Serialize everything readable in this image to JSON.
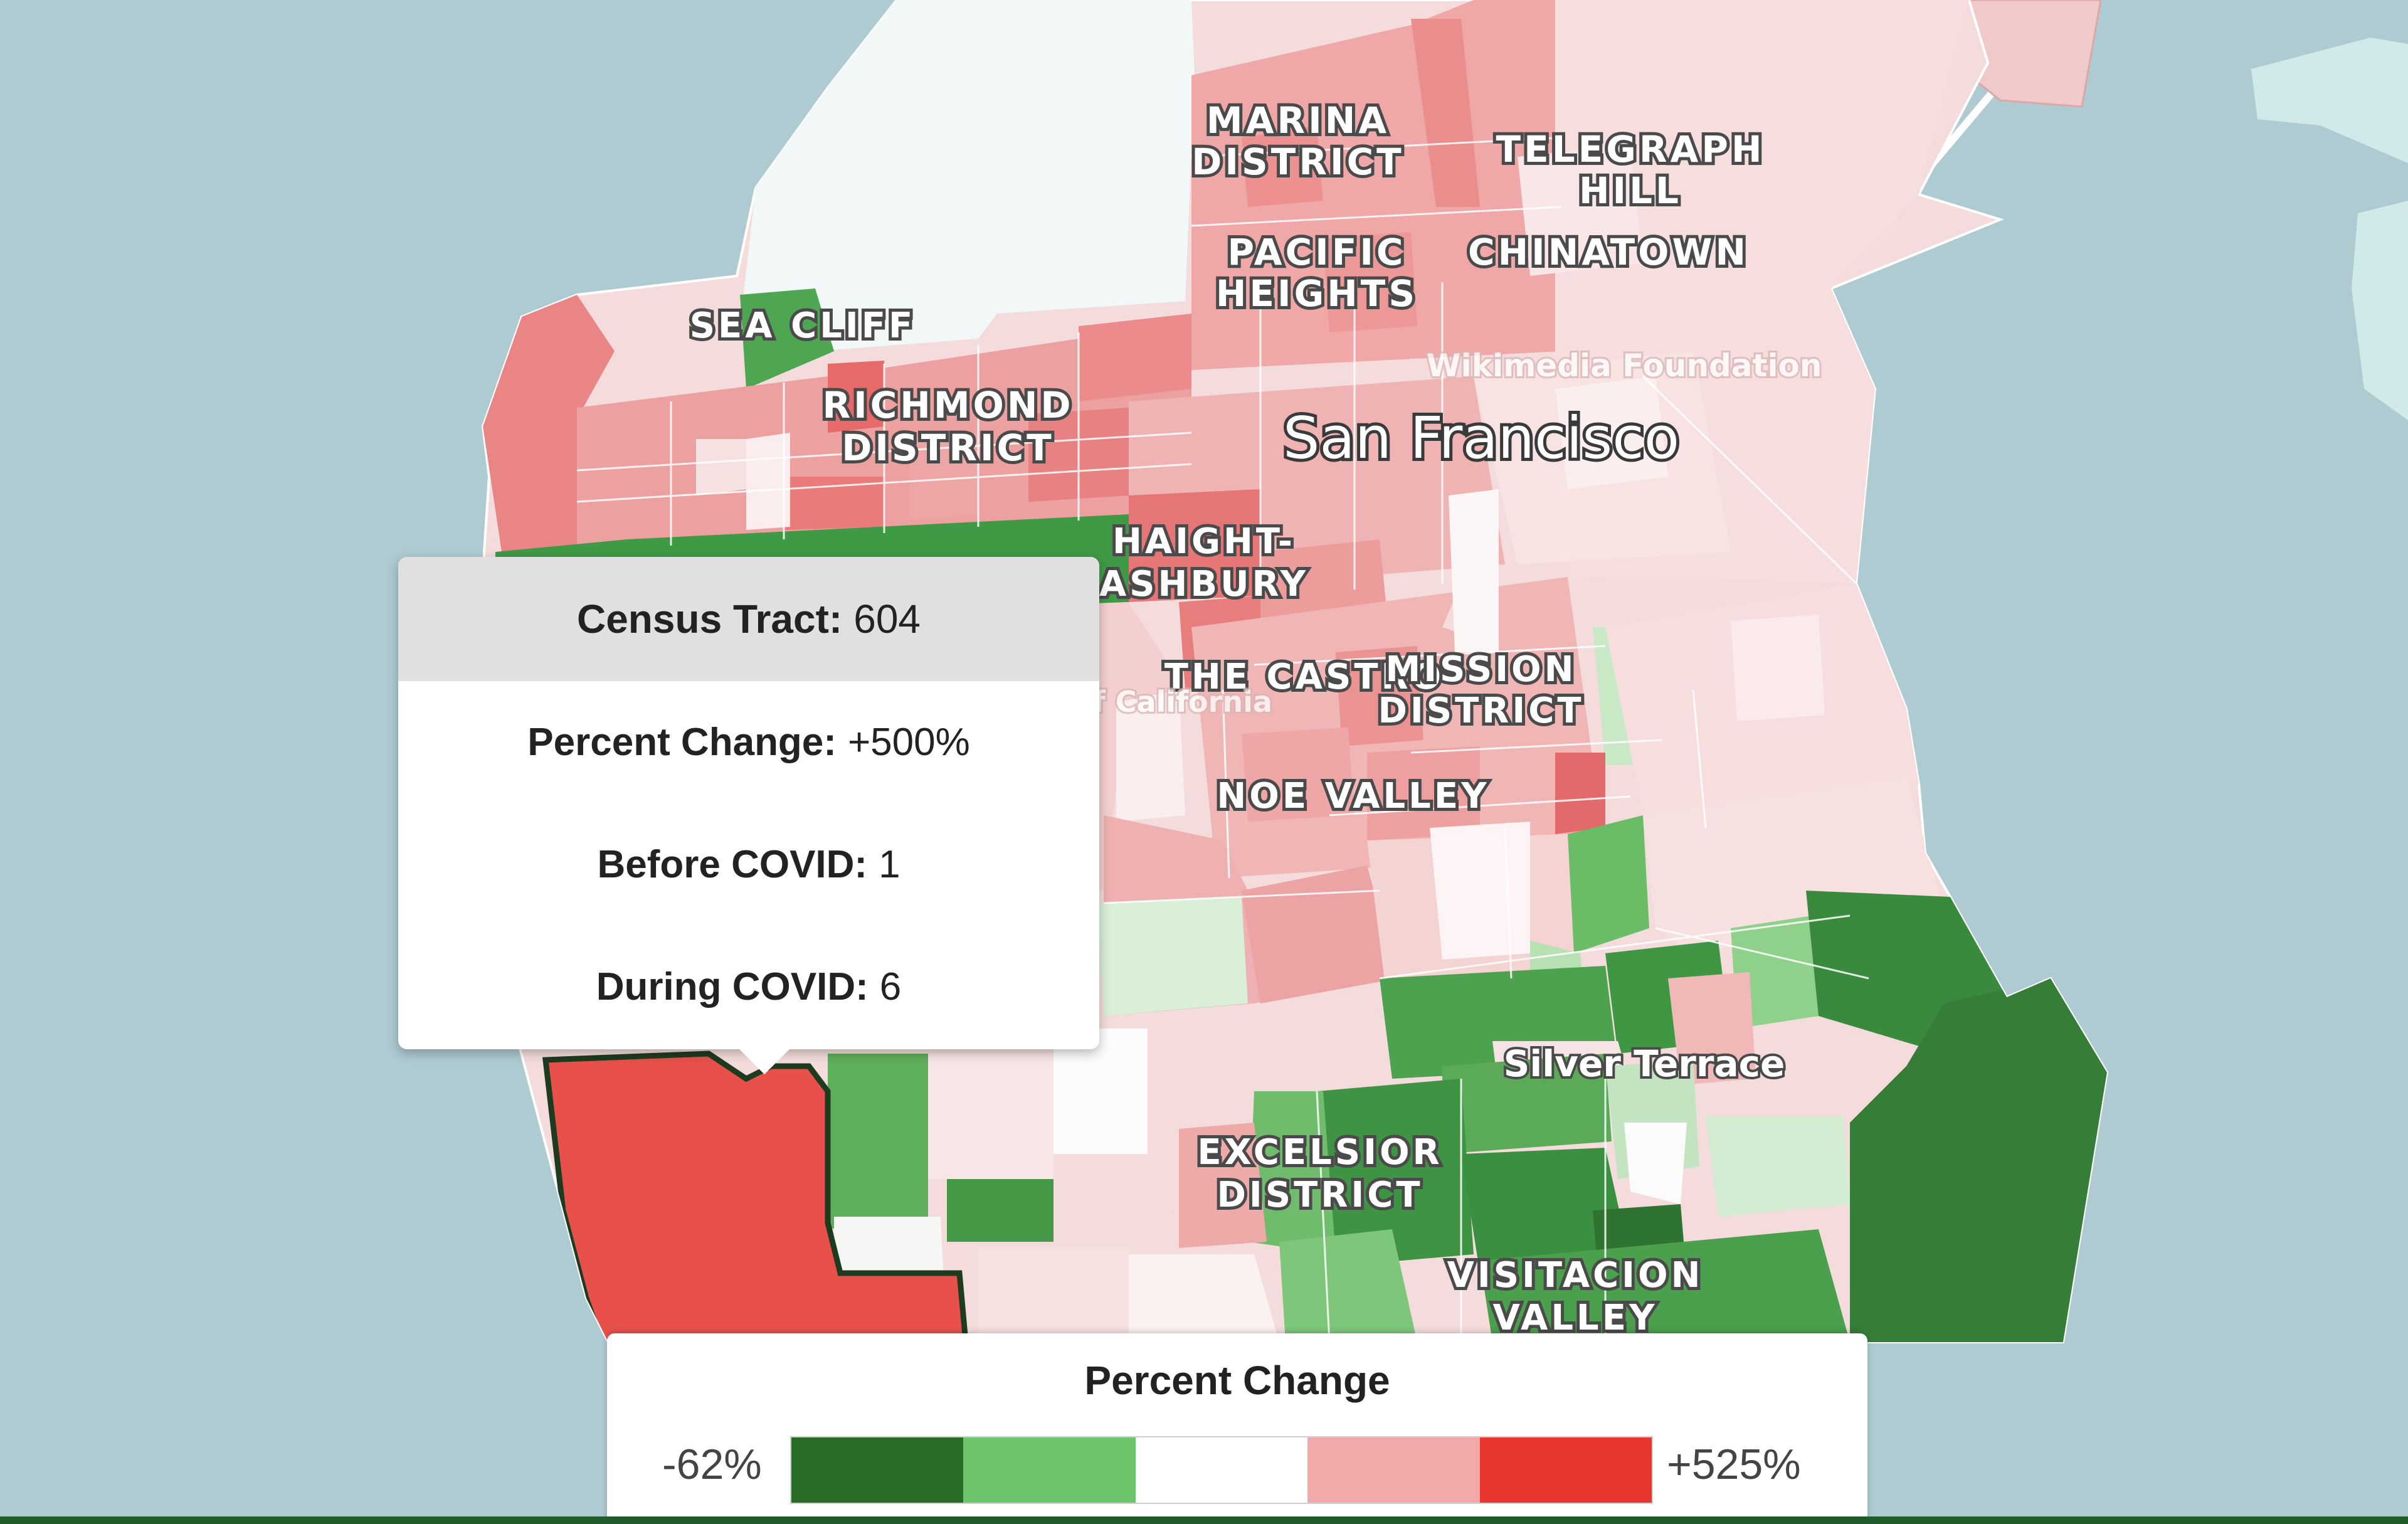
{
  "map": {
    "city_label": "San Francisco",
    "neighborhood_labels": [
      {
        "lines": [
          "MARINA",
          "DISTRICT"
        ]
      },
      {
        "lines": [
          "TELEGRAPH",
          "HILL"
        ]
      },
      {
        "lines": [
          "CHINATOWN"
        ]
      },
      {
        "lines": [
          "PACIFIC",
          "HEIGHTS"
        ]
      },
      {
        "lines": [
          "SEA CLIFF"
        ]
      },
      {
        "lines": [
          "RICHMOND",
          "DISTRICT"
        ]
      },
      {
        "lines": [
          "HAIGHT-",
          "ASHBURY"
        ]
      },
      {
        "lines": [
          "THE CASTRO"
        ]
      },
      {
        "lines": [
          "MISSION",
          "DISTRICT"
        ]
      },
      {
        "lines": [
          "NOE VALLEY"
        ]
      },
      {
        "lines": [
          "EXCELSIOR",
          "DISTRICT"
        ]
      },
      {
        "lines": [
          "VISITACION",
          "VALLEY"
        ]
      }
    ],
    "sub_labels": [
      "Silver Terrace"
    ],
    "faint_labels": [
      "Wikimedia Foundation",
      "of California"
    ],
    "colors": {
      "water": "#aecbd2",
      "selected_tract": "#e8514b",
      "selected_outline": "#1d3b1f"
    }
  },
  "tooltip": {
    "title_label": "Census Tract:",
    "title_value": "604",
    "rows": [
      {
        "label": "Percent Change:",
        "value": "+500%"
      },
      {
        "label": "Before COVID:",
        "value": "1"
      },
      {
        "label": "During COVID:",
        "value": "6"
      }
    ]
  },
  "legend": {
    "title": "Percent Change",
    "min_label": "-62%",
    "max_label": "+525%",
    "colors": [
      "#2a6b27",
      "#6dc46a",
      "#ffffff",
      "#f1a9a9",
      "#e8362f"
    ]
  }
}
